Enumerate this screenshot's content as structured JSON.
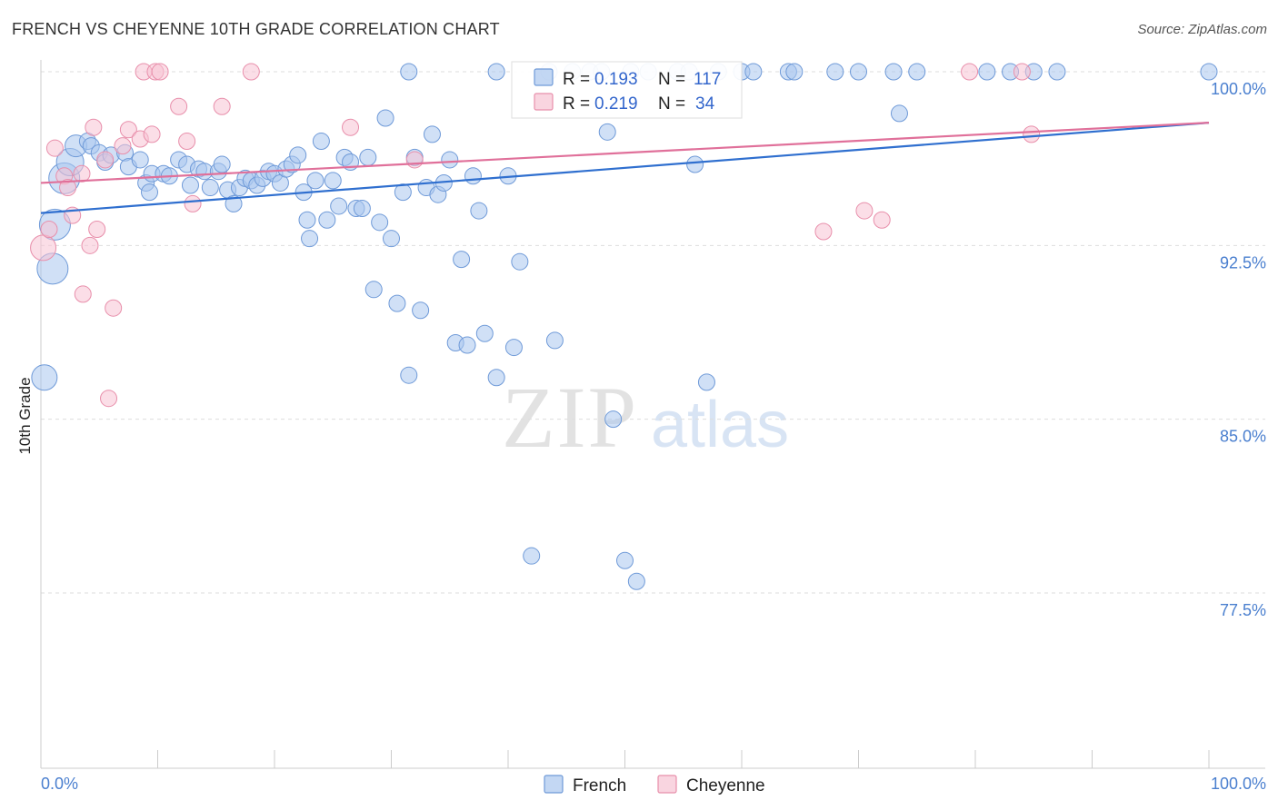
{
  "header": {
    "title": "FRENCH VS CHEYENNE 10TH GRADE CORRELATION CHART",
    "source": "Source: ZipAtlas.com"
  },
  "watermark": {
    "zip": "ZIP",
    "atlas": "atlas"
  },
  "stats_legend": {
    "rows": [
      {
        "r_label": "R =",
        "r_value": "0.193",
        "n_label": "N =",
        "n_value": "117",
        "color": "#7ba3e0"
      },
      {
        "r_label": "R =",
        "r_value": "0.219",
        "n_label": "N =",
        "n_value": "34",
        "color": "#f2a7bf"
      }
    ]
  },
  "colors": {
    "french_fill": "#aac6ee",
    "french_stroke": "#6f9ad8",
    "french_line": "#2f6fcf",
    "cheyenne_fill": "#f7c3d3",
    "cheyenne_stroke": "#e88fab",
    "cheyenne_line": "#e0709a",
    "tick_text": "#4a7fcf",
    "grid": "#dddddd"
  },
  "chart_data": {
    "type": "scatter",
    "title": "FRENCH VS CHEYENNE 10TH GRADE CORRELATION CHART",
    "xlabel": "",
    "ylabel": "10th Grade",
    "xlim": [
      0,
      100
    ],
    "ylim": [
      70.0,
      101.0
    ],
    "x_tick_labels": [
      "0.0%",
      "100.0%"
    ],
    "y_ticks": [
      {
        "value": 100.0,
        "label": "100.0%"
      },
      {
        "value": 92.5,
        "label": "92.5%"
      },
      {
        "value": 85.0,
        "label": "85.0%"
      },
      {
        "value": 77.5,
        "label": "77.5%"
      }
    ],
    "grid": true,
    "legend_position": "bottom",
    "series": [
      {
        "name": "French",
        "r": 0.193,
        "n": 117,
        "trend": {
          "x": [
            0,
            100
          ],
          "y": [
            93.9,
            97.8
          ]
        },
        "points": [
          [
            0.3,
            86.8,
            14
          ],
          [
            1.0,
            91.5,
            17
          ],
          [
            1.2,
            93.4,
            17
          ],
          [
            2.0,
            95.4,
            17
          ],
          [
            2.5,
            96.1,
            15
          ],
          [
            3.0,
            96.8,
            12
          ],
          [
            4.0,
            97.0,
            9
          ],
          [
            4.3,
            96.8,
            9
          ],
          [
            5.0,
            96.5,
            9
          ],
          [
            5.5,
            96.1,
            9
          ],
          [
            6.0,
            96.4,
            9
          ],
          [
            7.2,
            96.5,
            9
          ],
          [
            7.5,
            95.9,
            9
          ],
          [
            8.5,
            96.2,
            9
          ],
          [
            9.0,
            95.2,
            9
          ],
          [
            9.3,
            94.8,
            9
          ],
          [
            9.5,
            95.6,
            9
          ],
          [
            10.5,
            95.6,
            9
          ],
          [
            11.0,
            95.5,
            9
          ],
          [
            11.8,
            96.2,
            9
          ],
          [
            12.5,
            96.0,
            9
          ],
          [
            12.8,
            95.1,
            9
          ],
          [
            13.5,
            95.8,
            9
          ],
          [
            14.0,
            95.7,
            9
          ],
          [
            14.5,
            95.0,
            9
          ],
          [
            15.2,
            95.7,
            9
          ],
          [
            15.5,
            96.0,
            9
          ],
          [
            16.0,
            94.9,
            9
          ],
          [
            16.5,
            94.3,
            9
          ],
          [
            17.0,
            95.0,
            9
          ],
          [
            17.5,
            95.4,
            9
          ],
          [
            18.0,
            95.3,
            9
          ],
          [
            18.5,
            95.1,
            9
          ],
          [
            19.0,
            95.4,
            9
          ],
          [
            19.5,
            95.7,
            9
          ],
          [
            20.0,
            95.6,
            9
          ],
          [
            20.5,
            95.2,
            9
          ],
          [
            21.0,
            95.8,
            9
          ],
          [
            21.5,
            96.0,
            9
          ],
          [
            22.0,
            96.4,
            9
          ],
          [
            22.5,
            94.8,
            9
          ],
          [
            22.8,
            93.6,
            9
          ],
          [
            23.0,
            92.8,
            9
          ],
          [
            23.5,
            95.3,
            9
          ],
          [
            24.0,
            97.0,
            9
          ],
          [
            24.5,
            93.6,
            9
          ],
          [
            25.0,
            95.3,
            9
          ],
          [
            25.5,
            94.2,
            9
          ],
          [
            26.0,
            96.3,
            9
          ],
          [
            26.5,
            96.1,
            9
          ],
          [
            27.0,
            94.1,
            9
          ],
          [
            27.5,
            94.1,
            9
          ],
          [
            28.0,
            96.3,
            9
          ],
          [
            28.5,
            90.6,
            9
          ],
          [
            29.0,
            93.5,
            9
          ],
          [
            29.5,
            98.0,
            9
          ],
          [
            30.0,
            92.8,
            9
          ],
          [
            30.5,
            90.0,
            9
          ],
          [
            31.0,
            94.8,
            9
          ],
          [
            31.5,
            86.9,
            9
          ],
          [
            32.0,
            96.3,
            9
          ],
          [
            32.5,
            89.7,
            9
          ],
          [
            33.0,
            95.0,
            9
          ],
          [
            33.5,
            97.3,
            9
          ],
          [
            34.0,
            94.7,
            9
          ],
          [
            34.5,
            95.2,
            9
          ],
          [
            35.0,
            96.2,
            9
          ],
          [
            35.5,
            88.3,
            9
          ],
          [
            36.0,
            91.9,
            9
          ],
          [
            36.5,
            88.2,
            9
          ],
          [
            37.0,
            95.5,
            9
          ],
          [
            37.5,
            94.0,
            9
          ],
          [
            38.0,
            88.7,
            9
          ],
          [
            39.0,
            86.8,
            9
          ],
          [
            40.0,
            95.5,
            9
          ],
          [
            40.5,
            88.1,
            9
          ],
          [
            41.0,
            91.8,
            9
          ],
          [
            42.0,
            79.1,
            9
          ],
          [
            44.0,
            88.4,
            9
          ],
          [
            48.5,
            97.4,
            9
          ],
          [
            49.0,
            85.0,
            9
          ],
          [
            50.0,
            78.9,
            9
          ],
          [
            51.0,
            78.0,
            9
          ],
          [
            56.0,
            96.0,
            9
          ],
          [
            57.0,
            86.6,
            9
          ],
          [
            73.5,
            98.2,
            9
          ],
          [
            31.5,
            100,
            9
          ],
          [
            39.0,
            100,
            9
          ],
          [
            43.5,
            100,
            9
          ],
          [
            45.5,
            100,
            9
          ],
          [
            47.0,
            100,
            9
          ],
          [
            48.0,
            100,
            9
          ],
          [
            50.5,
            100,
            9
          ],
          [
            52.0,
            100,
            9
          ],
          [
            54.5,
            100,
            9
          ],
          [
            55.5,
            100,
            9
          ],
          [
            58.0,
            100,
            9
          ],
          [
            60.0,
            100,
            9
          ],
          [
            61.0,
            100,
            9
          ],
          [
            64.0,
            100,
            9
          ],
          [
            64.5,
            100,
            9
          ],
          [
            68.0,
            100,
            9
          ],
          [
            70.0,
            100,
            9
          ],
          [
            73.0,
            100,
            9
          ],
          [
            75.0,
            100,
            9
          ],
          [
            81.0,
            100,
            9
          ],
          [
            83.0,
            100,
            9
          ],
          [
            85.0,
            100,
            9
          ],
          [
            87.0,
            100,
            9
          ],
          [
            100.0,
            100,
            9
          ]
        ]
      },
      {
        "name": "Cheyenne",
        "r": 0.219,
        "n": 34,
        "trend": {
          "x": [
            0,
            100
          ],
          "y": [
            95.2,
            97.8
          ]
        },
        "points": [
          [
            0.2,
            92.4,
            14
          ],
          [
            0.7,
            93.2,
            9
          ],
          [
            1.2,
            96.7,
            9
          ],
          [
            2.0,
            95.5,
            9
          ],
          [
            2.3,
            95.0,
            9
          ],
          [
            2.7,
            93.8,
            9
          ],
          [
            3.5,
            95.6,
            9
          ],
          [
            3.6,
            90.4,
            9
          ],
          [
            4.2,
            92.5,
            9
          ],
          [
            4.5,
            97.6,
            9
          ],
          [
            4.8,
            93.2,
            9
          ],
          [
            5.5,
            96.2,
            9
          ],
          [
            5.8,
            85.9,
            9
          ],
          [
            6.2,
            89.8,
            9
          ],
          [
            7.0,
            96.8,
            9
          ],
          [
            7.5,
            97.5,
            9
          ],
          [
            8.5,
            97.1,
            9
          ],
          [
            8.8,
            100,
            9
          ],
          [
            9.5,
            97.3,
            9
          ],
          [
            9.8,
            100,
            9
          ],
          [
            10.2,
            100,
            9
          ],
          [
            11.8,
            98.5,
            9
          ],
          [
            12.5,
            97.0,
            9
          ],
          [
            13.0,
            94.3,
            9
          ],
          [
            15.5,
            98.5,
            9
          ],
          [
            18.0,
            100,
            9
          ],
          [
            26.5,
            97.6,
            9
          ],
          [
            32.0,
            96.2,
            9
          ],
          [
            67.0,
            93.1,
            9
          ],
          [
            70.5,
            94.0,
            9
          ],
          [
            72.0,
            93.6,
            9
          ],
          [
            79.5,
            100,
            9
          ],
          [
            84.0,
            100,
            9
          ],
          [
            84.8,
            97.3,
            9
          ]
        ]
      }
    ]
  }
}
